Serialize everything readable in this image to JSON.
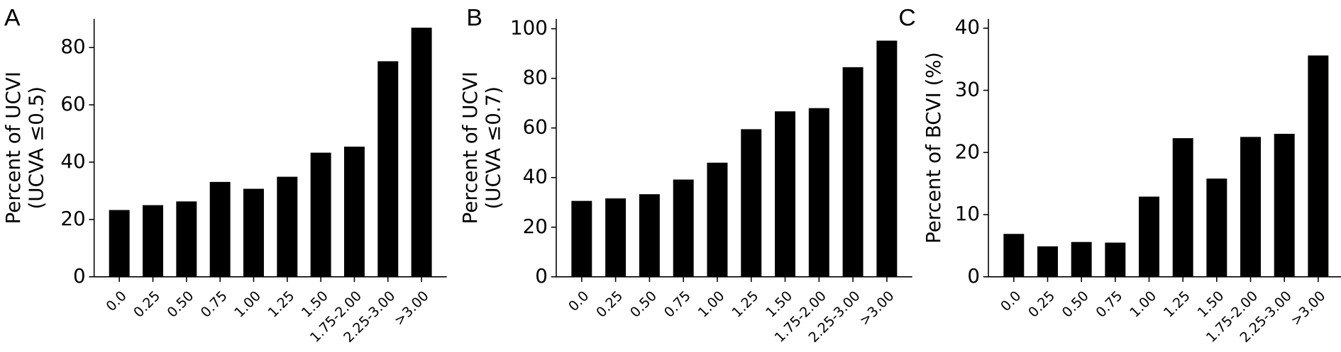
{
  "chart_data": [
    {
      "type": "bar",
      "title": "A",
      "ylabel": [
        "Percent of UCVI",
        "(UCVA ≤0.5)"
      ],
      "categories": [
        "0.0",
        "0.25",
        "0.50",
        "0.75",
        "1.00",
        "1.25",
        "1.50",
        "1.75-2.00",
        "2.25-3.00",
        ">3.00"
      ],
      "values": [
        23.3,
        25,
        26.3,
        33.1,
        30.7,
        34.9,
        43.3,
        45.4,
        75.2,
        86.9
      ],
      "color": "#000000",
      "ylim": [
        0,
        90
      ],
      "yticks": [
        0,
        20,
        40,
        60,
        80
      ]
    },
    {
      "type": "bar",
      "title": "B",
      "ylabel": [
        "Percent of UCVI",
        "(UCVA ≤0.7)"
      ],
      "categories": [
        "0.0",
        "0.25",
        "0.50",
        "0.75",
        "1.00",
        "1.25",
        "1.50",
        "1.75-2.00",
        "2.25-3.00",
        ">3.00"
      ],
      "values": [
        30.6,
        31.6,
        33.3,
        39.2,
        46,
        59.5,
        66.7,
        68,
        84.5,
        95.2
      ],
      "color": "#000000",
      "ylim": [
        0,
        104
      ],
      "yticks": [
        0,
        20,
        40,
        60,
        80,
        100
      ]
    },
    {
      "type": "bar",
      "title": "C",
      "ylabel": [
        "Percent of BCVI (%)"
      ],
      "categories": [
        "0.0",
        "0.25",
        "0.50",
        "0.75",
        "1.00",
        "1.25",
        "1.50",
        "1.75-2.00",
        "2.25-3.00",
        ">3.00"
      ],
      "values": [
        6.9,
        4.9,
        5.6,
        5.5,
        12.9,
        22.3,
        15.8,
        22.5,
        23,
        35.6
      ],
      "color": "#000000",
      "ylim": [
        0,
        41.5
      ],
      "yticks": [
        0,
        10,
        20,
        30,
        40
      ]
    }
  ]
}
